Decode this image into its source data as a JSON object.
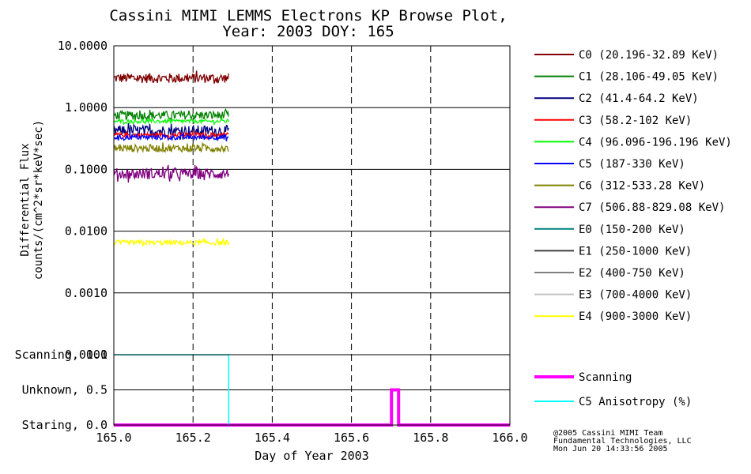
{
  "title": {
    "line1": "Cassini MIMI LEMMS Electrons KP Browse Plot,",
    "line2": "Year: 2003 DOY: 165"
  },
  "colors": {
    "grid": "#000000",
    "scanning": "#ff00ff",
    "c5_anisotropy": "#00ffff"
  },
  "chart_data": [
    {
      "type": "line",
      "panel": "flux",
      "yscale": "log",
      "ylabel": "Differential Flux counts/(cm^2*sr*keV*sec)",
      "ylabel_lines": [
        "Differential Flux",
        "counts/(cm^2*sr*keV*sec)"
      ],
      "xlim": [
        165.0,
        166.0
      ],
      "ylim": [
        0.0001,
        10.0
      ],
      "y_ticks": [
        10.0,
        1.0,
        0.1,
        0.01,
        0.001,
        0.0001
      ],
      "y_tick_labels": [
        "10.0000",
        "1.0000",
        "0.1000",
        "0.0100",
        "0.0010",
        "0.0001"
      ],
      "x_ticks": [
        165.0,
        165.2,
        165.4,
        165.6,
        165.8,
        166.0
      ],
      "grid": "solid horizontal, dashed vertical",
      "legend_position": "right",
      "data_range": [
        165.0,
        165.29
      ],
      "series": [
        {
          "name": "C0 (20.196-32.89 KeV)",
          "color": "#800000",
          "level": 3.0,
          "spread": 0.08
        },
        {
          "name": "C1 (28.106-49.05 KeV)",
          "color": "#008000",
          "level": 0.75,
          "spread": 0.07
        },
        {
          "name": "C2 (41.4-64.2 KeV)",
          "color": "#000080",
          "level": 0.42,
          "spread": 0.09
        },
        {
          "name": "C3 (58.2-102 KeV)",
          "color": "#ff0000",
          "level": 0.36,
          "spread": 0.04
        },
        {
          "name": "C4 (96.096-196.196 KeV)",
          "color": "#00ff00",
          "level": 0.6,
          "spread": 0.03
        },
        {
          "name": "C5 (187-330 KeV)",
          "color": "#0000ff",
          "level": 0.33,
          "spread": 0.04
        },
        {
          "name": "C6 (312-533.28 KeV)",
          "color": "#808000",
          "level": 0.22,
          "spread": 0.06
        },
        {
          "name": "C7 (506.88-829.08 KeV)",
          "color": "#800080",
          "level": 0.085,
          "spread": 0.09
        },
        {
          "name": "E0 (150-200 KeV)",
          "color": "#008080",
          "level": null,
          "spread": 0
        },
        {
          "name": "E1 (250-1000 KeV)",
          "color": "#404040",
          "level": null,
          "spread": 0
        },
        {
          "name": "E2 (400-750 KeV)",
          "color": "#808080",
          "level": null,
          "spread": 0
        },
        {
          "name": "E3 (700-4000 KeV)",
          "color": "#c0c0c0",
          "level": null,
          "spread": 0
        },
        {
          "name": "E4 (900-3000 KeV)",
          "color": "#ffff00",
          "level": 0.0065,
          "spread": 0.04
        }
      ]
    },
    {
      "type": "line",
      "panel": "mode",
      "xlabel": "Day of Year 2003",
      "xlim": [
        165.0,
        166.0
      ],
      "ylim": [
        0.0,
        1.0
      ],
      "y_tick_labels": [
        "Scanning, 1.0",
        "Unknown, 0.5",
        "Staring, 0.0"
      ],
      "x_tick_labels": [
        "165.0",
        "165.2",
        "165.4",
        "165.6",
        "165.8",
        "166.0"
      ],
      "legend_position": "right",
      "series": [
        {
          "name": "Scanning",
          "color": "#ff00ff",
          "x": [
            165.0,
            165.701,
            165.701,
            165.719,
            165.719,
            166.0
          ],
          "y": [
            0.0,
            0.0,
            0.5,
            0.5,
            0.0,
            0.0
          ]
        },
        {
          "name": "C5 Anisotropy (%)",
          "color": "#00ffff",
          "x": [
            165.0,
            165.29,
            165.29
          ],
          "y": [
            1.0,
            1.0,
            0.0
          ]
        }
      ]
    }
  ],
  "credits": {
    "line1": "@2005 Cassini MIMI Team",
    "line2": "Fundamental Technologies, LLC",
    "line3": "Mon Jun 20 14:33:56 2005"
  }
}
